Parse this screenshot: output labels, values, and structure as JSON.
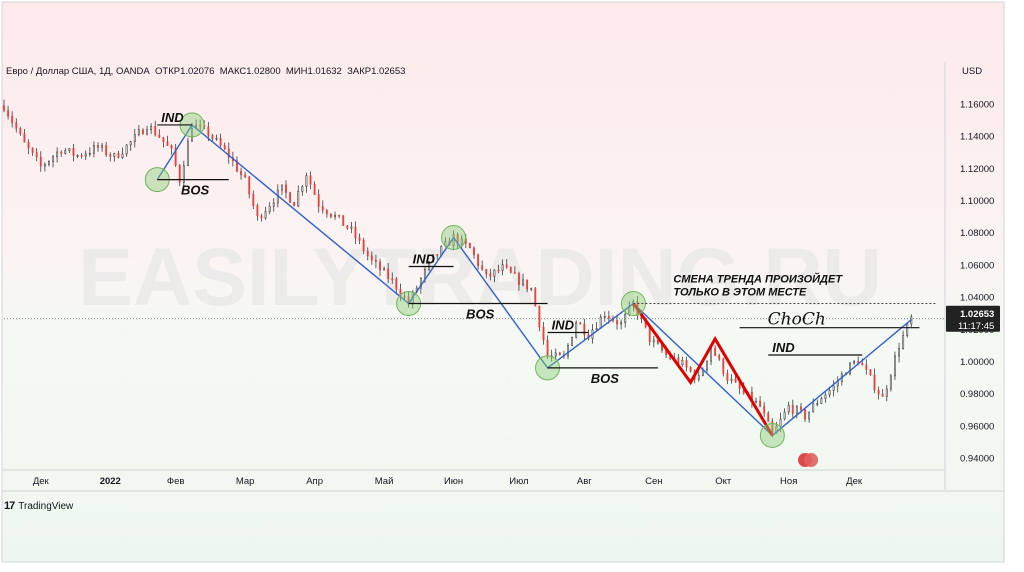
{
  "header": {
    "title": "Евро / Доллар США, 1Д, OANDA",
    "open": "ОТКР1.02076",
    "high": "МАКС1.02800",
    "low": "МИН1.01632",
    "close": "ЗАКР1.02653",
    "currency": "USD"
  },
  "watermark": "EASILYTRADING.RU",
  "price_tag": {
    "price": "1.02653",
    "time": "11:17:45"
  },
  "brand": {
    "logo": "17",
    "name": "TradingView"
  },
  "annotations": {
    "ind": "IND",
    "bos": "BOS",
    "choch": "ChoCh",
    "note_line1": "СМЕНА ТРЕНДА ПРОИЗОЙДЕТ",
    "note_line2": "ТОЛЬКО В ЭТОМ МЕСТЕ"
  },
  "colors": {
    "up": "#ffffff",
    "down": "#e8423f",
    "wick": "#3c3c3c",
    "zigzag": "#2f5fd0",
    "red_path": "#e10000",
    "swing_circle": "#8fce7a",
    "bg_top": "#fdeaea",
    "bg_bottom": "#eef7ee"
  },
  "chart_data": {
    "type": "candlestick",
    "instrument": "Евро / Доллар США, 1Д, OANDA",
    "xlabels": [
      "Дек",
      "2022",
      "Фев",
      "Мар",
      "Апр",
      "Май",
      "Июн",
      "Июл",
      "Авг",
      "Сен",
      "Окт",
      "Ноя",
      "Дек"
    ],
    "yticks": [
      "1.16000",
      "1.14000",
      "1.12000",
      "1.10000",
      "1.08000",
      "1.06000",
      "1.04000",
      "1.02000",
      "1.00000",
      "0.98000",
      "0.96000",
      "0.94000"
    ],
    "ylim": [
      0.935,
      1.17
    ],
    "current_price": 1.02653,
    "ohlc": {
      "open": 1.02076,
      "high": 1.028,
      "low": 1.01632,
      "close": 1.02653
    },
    "price_path": [
      [
        0,
        1.159
      ],
      [
        10,
        1.135
      ],
      [
        18,
        1.121
      ],
      [
        28,
        1.132
      ],
      [
        36,
        1.128
      ],
      [
        46,
        1.133
      ],
      [
        54,
        1.127
      ],
      [
        62,
        1.136
      ],
      [
        70,
        1.147
      ],
      [
        76,
        1.14
      ],
      [
        82,
        1.13
      ],
      [
        86,
        1.113
      ],
      [
        92,
        1.147
      ],
      [
        100,
        1.142
      ],
      [
        110,
        1.128
      ],
      [
        118,
        1.112
      ],
      [
        124,
        1.089
      ],
      [
        130,
        1.098
      ],
      [
        136,
        1.107
      ],
      [
        142,
        1.099
      ],
      [
        148,
        1.117
      ],
      [
        154,
        1.098
      ],
      [
        162,
        1.09
      ],
      [
        170,
        1.081
      ],
      [
        180,
        1.062
      ],
      [
        190,
        1.05
      ],
      [
        198,
        1.036
      ],
      [
        204,
        1.051
      ],
      [
        210,
        1.064
      ],
      [
        220,
        1.077
      ],
      [
        228,
        1.07
      ],
      [
        236,
        1.052
      ],
      [
        244,
        1.058
      ],
      [
        250,
        1.052
      ],
      [
        258,
        1.045
      ],
      [
        266,
        1.003
      ],
      [
        274,
        1.002
      ],
      [
        280,
        1.025
      ],
      [
        286,
        1.017
      ],
      [
        294,
        1.03
      ],
      [
        302,
        1.023
      ],
      [
        308,
        1.036
      ],
      [
        316,
        1.014
      ],
      [
        324,
        1.004
      ],
      [
        332,
        0.998
      ],
      [
        340,
        0.989
      ],
      [
        346,
        1.009
      ],
      [
        354,
        0.99
      ],
      [
        362,
        0.98
      ],
      [
        370,
        0.972
      ],
      [
        376,
        0.954
      ],
      [
        384,
        0.972
      ],
      [
        392,
        0.966
      ],
      [
        400,
        0.978
      ],
      [
        406,
        0.984
      ],
      [
        412,
        0.995
      ],
      [
        418,
        1.001
      ],
      [
        424,
        0.989
      ],
      [
        430,
        0.977
      ],
      [
        438,
        1.01
      ],
      [
        444,
        1.0265
      ]
    ],
    "series": [
      {
        "name": "zigzag",
        "points": [
          [
            75,
            1.113
          ],
          [
            92,
            1.147
          ],
          [
            198,
            1.036
          ],
          [
            220,
            1.077
          ],
          [
            266,
            0.996
          ],
          [
            308,
            1.036
          ],
          [
            376,
            0.954
          ],
          [
            444,
            1.026
          ]
        ]
      },
      {
        "name": "red",
        "points": [
          [
            308,
            1.036
          ],
          [
            336,
            0.987
          ],
          [
            348,
            1.014
          ],
          [
            376,
            0.954
          ]
        ]
      }
    ],
    "levels": [
      {
        "label": "IND",
        "y": 1.147,
        "x": [
          75,
          92
        ]
      },
      {
        "label": "BOS",
        "y": 1.113,
        "x": [
          75,
          110
        ]
      },
      {
        "label": "IND",
        "y": 1.059,
        "x": [
          198,
          220
        ]
      },
      {
        "label": "BOS",
        "y": 1.036,
        "x": [
          198,
          266
        ]
      },
      {
        "label": "IND",
        "y": 1.018,
        "x": [
          266,
          286
        ]
      },
      {
        "label": "BOS",
        "y": 0.996,
        "x": [
          266,
          320
        ]
      },
      {
        "label": "IND",
        "y": 1.004,
        "x": [
          374,
          420
        ]
      },
      {
        "label": "ChoCh",
        "y": 1.021,
        "x": [
          360,
          448
        ]
      },
      {
        "label": "note",
        "y": 1.036,
        "x": [
          308,
          456
        ]
      }
    ],
    "swing_circles": [
      [
        75,
        1.113
      ],
      [
        92,
        1.147
      ],
      [
        198,
        1.036
      ],
      [
        220,
        1.077
      ],
      [
        266,
        0.996
      ],
      [
        308,
        1.036
      ],
      [
        376,
        0.954
      ]
    ]
  }
}
